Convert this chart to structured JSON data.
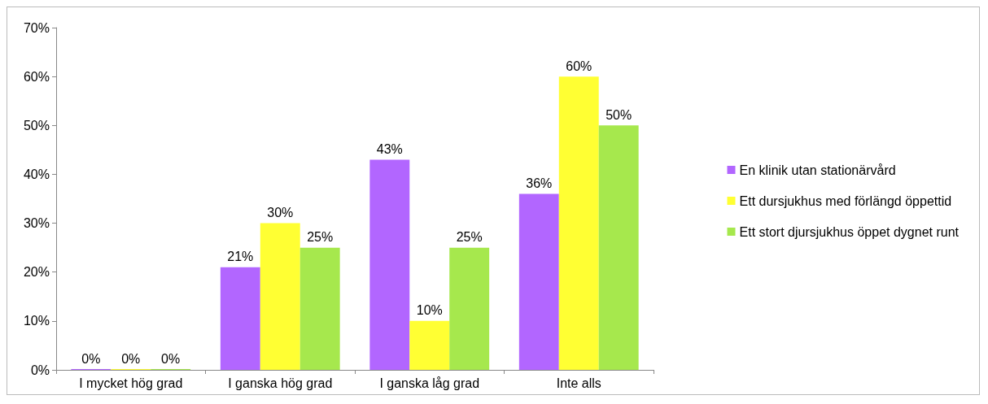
{
  "chart_data": {
    "type": "bar",
    "categories": [
      "I mycket hög grad",
      "I ganska hög grad",
      "I ganska låg grad",
      "Inte alls"
    ],
    "series": [
      {
        "name": "En klinik utan stationärvård",
        "color": "#b266ff",
        "values": [
          0,
          21,
          43,
          36
        ],
        "value_labels": [
          "0%",
          "21%",
          "43%",
          "36%"
        ]
      },
      {
        "name": "Ett dursjukhus med förlängd öppettid",
        "color": "#ffff33",
        "values": [
          0,
          30,
          10,
          60
        ],
        "value_labels": [
          "0%",
          "30%",
          "10%",
          "60%"
        ]
      },
      {
        "name": "Ett stort djursjukhus öppet dygnet runt",
        "color": "#a6e84d",
        "values": [
          0,
          25,
          25,
          50
        ],
        "value_labels": [
          "0%",
          "25%",
          "25%",
          "50%"
        ]
      }
    ],
    "ylim": [
      0,
      70
    ],
    "yticks": [
      {
        "value": 0,
        "label": "0%"
      },
      {
        "value": 10,
        "label": "10%"
      },
      {
        "value": 20,
        "label": "20%"
      },
      {
        "value": 30,
        "label": "30%"
      },
      {
        "value": 40,
        "label": "40%"
      },
      {
        "value": 50,
        "label": "50%"
      },
      {
        "value": 60,
        "label": "60%"
      },
      {
        "value": 70,
        "label": "70%"
      }
    ],
    "grid": false,
    "legend": "right"
  }
}
